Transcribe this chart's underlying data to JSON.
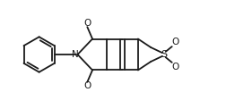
{
  "bg_color": "#ffffff",
  "line_color": "#1a1a1a",
  "line_width": 1.3,
  "font_size_atom": 7.5,
  "figsize": [
    2.62,
    1.22
  ],
  "dpi": 100,
  "xlim": [
    -4.2,
    4.0
  ],
  "ylim": [
    -1.6,
    1.6
  ]
}
